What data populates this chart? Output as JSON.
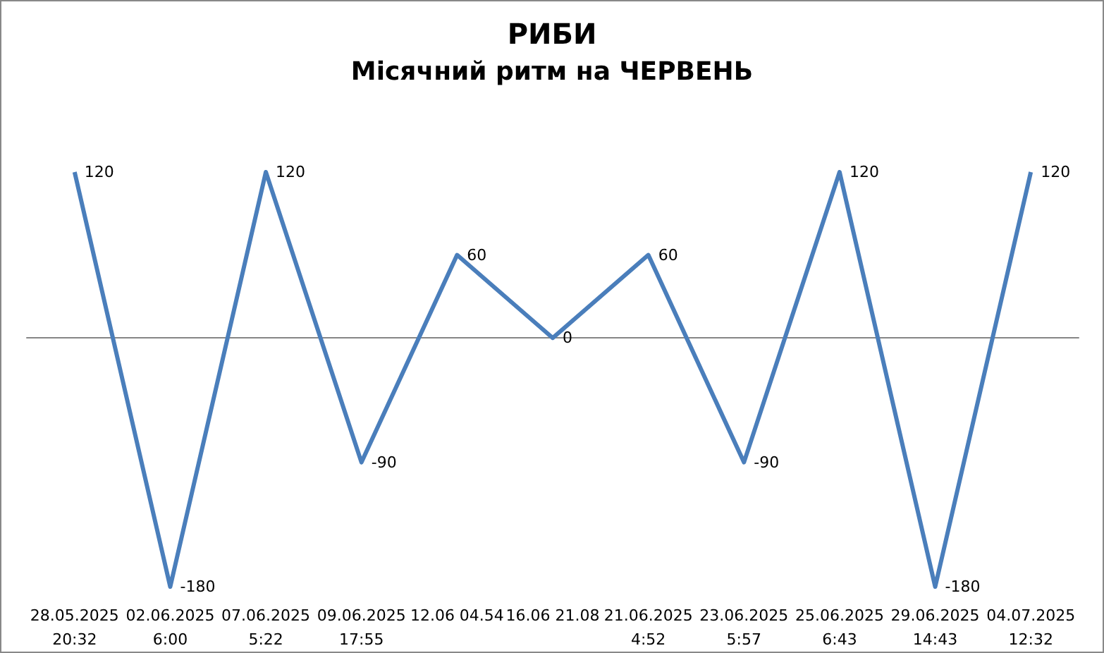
{
  "chart_data": {
    "type": "line",
    "title": "РИБИ",
    "subtitle": "Місячний ритм на ЧЕРВЕНЬ",
    "categories": [
      "28.05.2025\n20:32",
      "02.06.2025\n6:00",
      "07.06.2025\n5:22",
      "09.06.2025\n17:55",
      "12.06 04.54",
      "16.06 21.08",
      "21.06.2025\n4:52",
      "23.06.2025\n5:57",
      "25.06.2025\n6:43",
      "29.06.2025\n14:43",
      "04.07.2025\n12:32"
    ],
    "series": [
      {
        "color": "#4a7ebb",
        "values": [
          120,
          -180,
          120,
          -90,
          60,
          0,
          60,
          -90,
          120,
          -180,
          120
        ]
      }
    ],
    "data_labels": true,
    "grid": false,
    "marker": "none",
    "line_style": "solid"
  }
}
